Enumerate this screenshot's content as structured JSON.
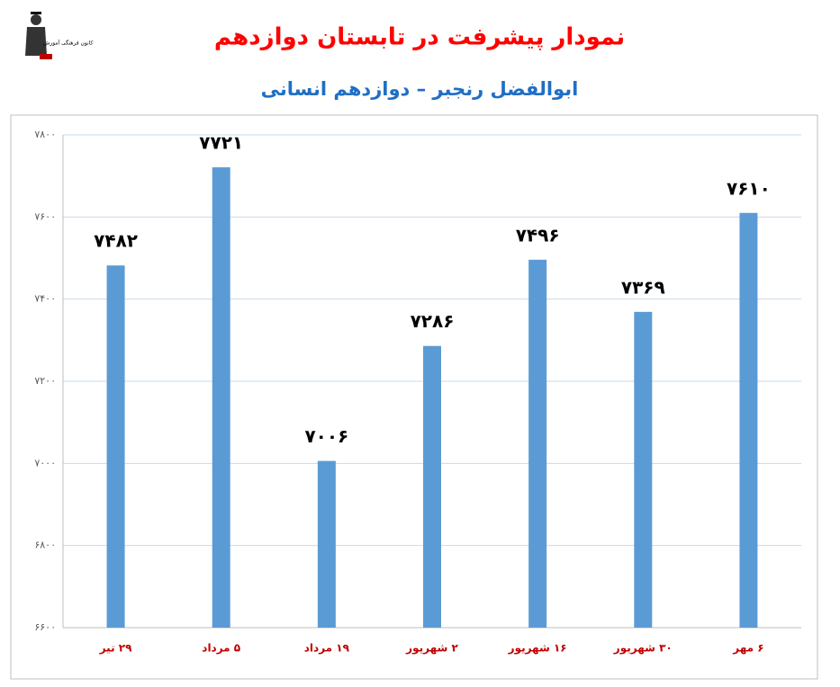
{
  "logo_text": "کانون فرهنگی آموزش",
  "chart_data": {
    "type": "bar",
    "title": "نمودار پیشرفت در تابستان دوازدهم",
    "subtitle": "ابوالفضل رنجبر – دوازدهم انسانی",
    "categories": [
      "۲۹ تیر",
      "۵ مرداد",
      "۱۹ مرداد",
      "۲ شهریور",
      "۱۶ شهریور",
      "۳۰ شهریور",
      "۶ مهر"
    ],
    "values": [
      7482,
      7721,
      7006,
      7286,
      7496,
      7369,
      7610
    ],
    "value_labels": [
      "۷۴۸۲",
      "۷۷۲۱",
      "۷۰۰۶",
      "۷۲۸۶",
      "۷۴۹۶",
      "۷۳۶۹",
      "۷۶۱۰"
    ],
    "color": "#5b9bd5",
    "ylim": [
      6600,
      7800
    ],
    "yticks": [
      {
        "value": 6600,
        "label": "۶۶۰۰"
      },
      {
        "value": 6800,
        "label": "۶۸۰۰"
      },
      {
        "value": 7000,
        "label": "۷۰۰۰"
      },
      {
        "value": 7200,
        "label": "۷۲۰۰"
      },
      {
        "value": 7400,
        "label": "۷۴۰۰"
      },
      {
        "value": 7600,
        "label": "۷۶۰۰"
      },
      {
        "value": 7800,
        "label": "۷۸۰۰"
      }
    ],
    "grid": true
  }
}
